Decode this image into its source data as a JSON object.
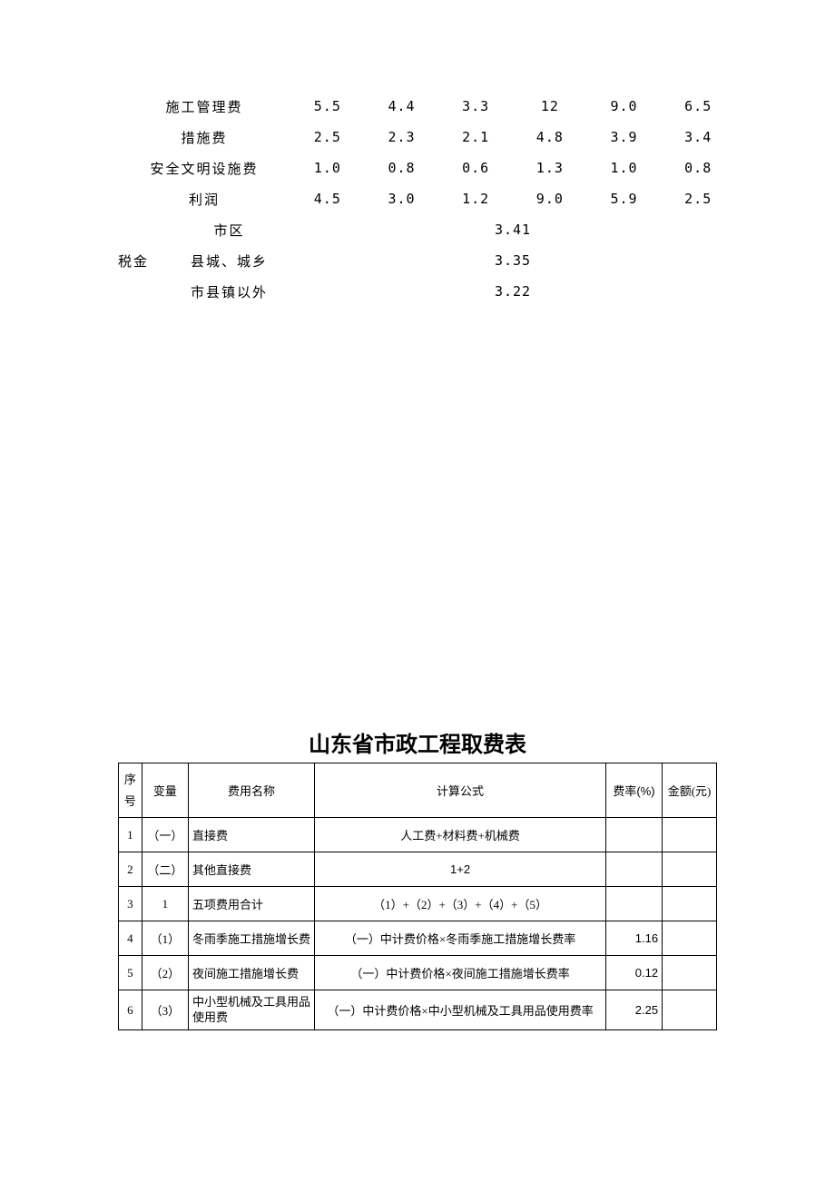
{
  "upper_table": {
    "font_size": 15,
    "text_color": "#000000",
    "rows": [
      {
        "label": "施工管理费",
        "v1": "5.5",
        "v2": "4.4",
        "v3": "3.3",
        "v4": "12",
        "v5": "9.0",
        "v6": "6.5"
      },
      {
        "label": "措施费",
        "v1": "2.5",
        "v2": "2.3",
        "v3": "2.1",
        "v4": "4.8",
        "v5": "3.9",
        "v6": "3.4"
      },
      {
        "label": "安全文明设施费",
        "v1": "1.0",
        "v2": "0.8",
        "v3": "0.6",
        "v4": "1.3",
        "v5": "1.0",
        "v6": "0.8"
      },
      {
        "label": "利润",
        "v1": "4.5",
        "v2": "3.0",
        "v3": "1.2",
        "v4": "9.0",
        "v5": "5.9",
        "v6": "2.5"
      }
    ],
    "tax_label": "税金",
    "tax_rows": [
      {
        "sublabel": "市区",
        "value": "3.41"
      },
      {
        "sublabel": "县城、城乡",
        "value": "3.35"
      },
      {
        "sublabel": "市县镇以外",
        "value": "3.22"
      }
    ]
  },
  "title": "山东省市政工程取费表",
  "lower_table": {
    "border_color": "#000000",
    "background_color": "#ffffff",
    "headers": {
      "seq": "序号",
      "var": "变量",
      "name": "费用名称",
      "formula": "计算公式",
      "rate": "费率(%)",
      "amount": "金额(元)"
    },
    "rows": [
      {
        "seq": "1",
        "var": "（一）",
        "name": "直接费",
        "formula": "人工费+材料费+机械费",
        "rate": "",
        "amount": ""
      },
      {
        "seq": "2",
        "var": "（二）",
        "name": "其他直接费",
        "formula": "1+2",
        "rate": "",
        "amount": ""
      },
      {
        "seq": "3",
        "var": "1",
        "name": "五项费用合计",
        "formula": "（1）+（2）+（3）+（4）+（5）",
        "rate": "",
        "amount": ""
      },
      {
        "seq": "4",
        "var": "（1）",
        "name": "冬雨季施工措施增长费",
        "formula": "（一）中计费价格×冬雨季施工措施增长费率",
        "rate": "1.16",
        "amount": ""
      },
      {
        "seq": "5",
        "var": "（2）",
        "name": "夜间施工措施增长费",
        "formula": "（一）中计费价格×夜间施工措施增长费率",
        "rate": "0.12",
        "amount": ""
      },
      {
        "seq": "6",
        "var": "（3）",
        "name": "中小型机械及工具用品使用费",
        "formula": "（一）中计费价格×中小型机械及工具用品使用费率",
        "rate": "2.25",
        "amount": ""
      }
    ]
  }
}
